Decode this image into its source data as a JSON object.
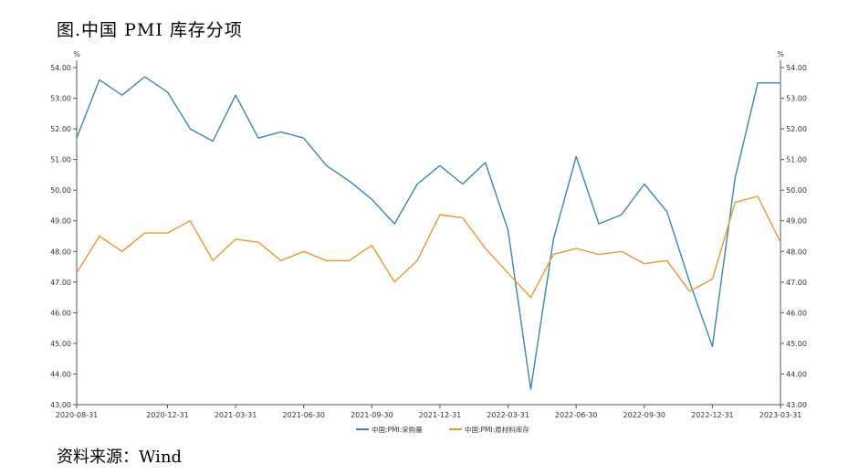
{
  "title": "图.中国 PMI 库存分项",
  "source": "资料来源：Wind",
  "chart_data": {
    "type": "line",
    "y_unit_left": "%",
    "y_unit_right": "%",
    "ylim": [
      43,
      54
    ],
    "y_ticks": [
      "43.00",
      "44.00",
      "45.00",
      "46.00",
      "47.00",
      "48.00",
      "49.00",
      "50.00",
      "51.00",
      "52.00",
      "53.00",
      "54.00"
    ],
    "x": [
      "2020-08-31",
      "2020-09-30",
      "2020-10-31",
      "2020-11-30",
      "2020-12-31",
      "2021-01-31",
      "2021-02-28",
      "2021-03-31",
      "2021-04-30",
      "2021-05-31",
      "2021-06-30",
      "2021-07-31",
      "2021-08-31",
      "2021-09-30",
      "2021-10-31",
      "2021-11-30",
      "2021-12-31",
      "2022-01-31",
      "2022-02-28",
      "2022-03-31",
      "2022-04-30",
      "2022-05-31",
      "2022-06-30",
      "2022-07-31",
      "2022-08-31",
      "2022-09-30",
      "2022-10-31",
      "2022-11-30",
      "2022-12-31",
      "2023-01-31",
      "2023-02-28",
      "2023-03-31"
    ],
    "x_tick_labels": [
      "2020-08-31",
      "2020-12-31",
      "2021-03-31",
      "2021-06-30",
      "2021-09-30",
      "2021-12-31",
      "2022-03-31",
      "2022-06-30",
      "2022-09-30",
      "2022-12-31",
      "2023-03-31"
    ],
    "series": [
      {
        "name": "中国:PMI:采购量",
        "color": "#3a87ad",
        "values": [
          51.7,
          53.6,
          53.1,
          53.7,
          53.2,
          52.0,
          51.6,
          53.1,
          51.7,
          51.9,
          51.7,
          50.8,
          50.3,
          49.7,
          48.9,
          50.2,
          50.8,
          50.2,
          50.9,
          48.7,
          43.5,
          48.4,
          51.1,
          48.9,
          49.2,
          50.2,
          49.3,
          47.0,
          44.9,
          50.4,
          53.5,
          53.5
        ]
      },
      {
        "name": "中国:PMI:原材料库存",
        "color": "#f0962e",
        "values": [
          47.3,
          48.5,
          48.0,
          48.6,
          48.6,
          49.0,
          47.7,
          48.4,
          48.3,
          47.7,
          48.0,
          47.7,
          47.7,
          48.2,
          47.0,
          47.7,
          49.2,
          49.1,
          48.1,
          47.3,
          46.5,
          47.9,
          48.1,
          47.9,
          48.0,
          47.6,
          47.7,
          46.7,
          47.1,
          49.6,
          49.8,
          48.3
        ]
      }
    ],
    "grid": false,
    "legend_position": "bottom"
  }
}
